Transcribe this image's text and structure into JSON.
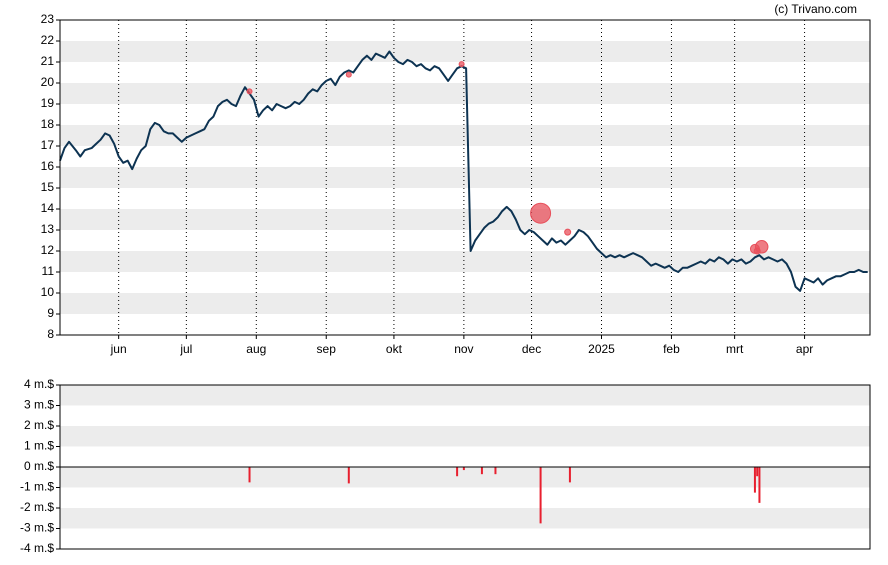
{
  "credit": "(c) Trivano.com",
  "colors": {
    "band": "#ececec",
    "price_line": "#0d3352",
    "marker": "#e8505b",
    "volume_bar": "#e8202f",
    "frame": "#000000",
    "vgrid": "#000000"
  },
  "chart_data": [
    {
      "type": "line",
      "title": "",
      "xlabel": "",
      "ylabel": "",
      "ylim": [
        8,
        23
      ],
      "yticks": [
        8,
        9,
        10,
        11,
        12,
        13,
        14,
        15,
        16,
        17,
        18,
        19,
        20,
        21,
        22,
        23
      ],
      "ytick_labels": [
        "8",
        "9",
        "10",
        "11",
        "12",
        "13",
        "14",
        "15",
        "16",
        "17",
        "18",
        "19",
        "20",
        "21",
        "22",
        "23"
      ],
      "xlim": [
        "2024-05-06",
        "2025-04-30"
      ],
      "xticks": [
        {
          "label": "jun",
          "date": "2024-06-01"
        },
        {
          "label": "jul",
          "date": "2024-07-01"
        },
        {
          "label": "aug",
          "date": "2024-08-01"
        },
        {
          "label": "sep",
          "date": "2024-09-01"
        },
        {
          "label": "okt",
          "date": "2024-10-01"
        },
        {
          "label": "nov",
          "date": "2024-11-01"
        },
        {
          "label": "dec",
          "date": "2024-12-01"
        },
        {
          "label": "2025",
          "date": "2025-01-01"
        },
        {
          "label": "feb",
          "date": "2025-02-01"
        },
        {
          "label": "mrt",
          "date": "2025-03-01"
        },
        {
          "label": "apr",
          "date": "2025-04-01"
        }
      ],
      "grid": "alternating horizontal bands, dotted vertical lines at month ticks",
      "series": [
        {
          "points": [
            [
              "2024-05-06",
              16.3
            ],
            [
              "2024-05-08",
              16.9
            ],
            [
              "2024-05-10",
              17.2
            ],
            [
              "2024-05-13",
              16.8
            ],
            [
              "2024-05-15",
              16.5
            ],
            [
              "2024-05-17",
              16.8
            ],
            [
              "2024-05-20",
              16.9
            ],
            [
              "2024-05-22",
              17.1
            ],
            [
              "2024-05-24",
              17.3
            ],
            [
              "2024-05-26",
              17.6
            ],
            [
              "2024-05-28",
              17.5
            ],
            [
              "2024-05-30",
              17.1
            ],
            [
              "2024-06-01",
              16.5
            ],
            [
              "2024-06-03",
              16.2
            ],
            [
              "2024-06-05",
              16.3
            ],
            [
              "2024-06-07",
              15.9
            ],
            [
              "2024-06-09",
              16.4
            ],
            [
              "2024-06-11",
              16.8
            ],
            [
              "2024-06-13",
              17.0
            ],
            [
              "2024-06-15",
              17.8
            ],
            [
              "2024-06-17",
              18.1
            ],
            [
              "2024-06-19",
              18.0
            ],
            [
              "2024-06-21",
              17.7
            ],
            [
              "2024-06-23",
              17.6
            ],
            [
              "2024-06-25",
              17.6
            ],
            [
              "2024-06-27",
              17.4
            ],
            [
              "2024-06-29",
              17.2
            ],
            [
              "2024-07-01",
              17.4
            ],
            [
              "2024-07-03",
              17.5
            ],
            [
              "2024-07-05",
              17.6
            ],
            [
              "2024-07-07",
              17.7
            ],
            [
              "2024-07-09",
              17.8
            ],
            [
              "2024-07-11",
              18.2
            ],
            [
              "2024-07-13",
              18.4
            ],
            [
              "2024-07-15",
              18.9
            ],
            [
              "2024-07-17",
              19.1
            ],
            [
              "2024-07-19",
              19.2
            ],
            [
              "2024-07-21",
              19.0
            ],
            [
              "2024-07-23",
              18.9
            ],
            [
              "2024-07-25",
              19.4
            ],
            [
              "2024-07-27",
              19.8
            ],
            [
              "2024-07-29",
              19.5
            ],
            [
              "2024-07-31",
              19.2
            ],
            [
              "2024-08-02",
              18.4
            ],
            [
              "2024-08-04",
              18.7
            ],
            [
              "2024-08-06",
              18.9
            ],
            [
              "2024-08-08",
              18.7
            ],
            [
              "2024-08-10",
              19.0
            ],
            [
              "2024-08-12",
              18.9
            ],
            [
              "2024-08-14",
              18.8
            ],
            [
              "2024-08-16",
              18.9
            ],
            [
              "2024-08-18",
              19.1
            ],
            [
              "2024-08-20",
              19.0
            ],
            [
              "2024-08-22",
              19.2
            ],
            [
              "2024-08-24",
              19.5
            ],
            [
              "2024-08-26",
              19.7
            ],
            [
              "2024-08-28",
              19.6
            ],
            [
              "2024-08-30",
              19.9
            ],
            [
              "2024-09-01",
              20.1
            ],
            [
              "2024-09-03",
              20.2
            ],
            [
              "2024-09-05",
              19.9
            ],
            [
              "2024-09-07",
              20.3
            ],
            [
              "2024-09-09",
              20.5
            ],
            [
              "2024-09-11",
              20.6
            ],
            [
              "2024-09-13",
              20.5
            ],
            [
              "2024-09-15",
              20.8
            ],
            [
              "2024-09-17",
              21.1
            ],
            [
              "2024-09-19",
              21.3
            ],
            [
              "2024-09-21",
              21.1
            ],
            [
              "2024-09-23",
              21.4
            ],
            [
              "2024-09-25",
              21.3
            ],
            [
              "2024-09-27",
              21.2
            ],
            [
              "2024-09-29",
              21.5
            ],
            [
              "2024-10-01",
              21.2
            ],
            [
              "2024-10-03",
              21.0
            ],
            [
              "2024-10-05",
              20.9
            ],
            [
              "2024-10-07",
              21.1
            ],
            [
              "2024-10-09",
              21.0
            ],
            [
              "2024-10-11",
              20.8
            ],
            [
              "2024-10-13",
              20.9
            ],
            [
              "2024-10-15",
              20.7
            ],
            [
              "2024-10-17",
              20.6
            ],
            [
              "2024-10-19",
              20.8
            ],
            [
              "2024-10-21",
              20.7
            ],
            [
              "2024-10-23",
              20.4
            ],
            [
              "2024-10-25",
              20.1
            ],
            [
              "2024-10-27",
              20.4
            ],
            [
              "2024-10-29",
              20.7
            ],
            [
              "2024-10-31",
              20.8
            ],
            [
              "2024-11-02",
              20.7
            ],
            [
              "2024-11-04",
              12.0
            ],
            [
              "2024-11-06",
              12.5
            ],
            [
              "2024-11-08",
              12.8
            ],
            [
              "2024-11-10",
              13.1
            ],
            [
              "2024-11-12",
              13.3
            ],
            [
              "2024-11-14",
              13.4
            ],
            [
              "2024-11-16",
              13.6
            ],
            [
              "2024-11-18",
              13.9
            ],
            [
              "2024-11-20",
              14.1
            ],
            [
              "2024-11-22",
              13.9
            ],
            [
              "2024-11-24",
              13.5
            ],
            [
              "2024-11-26",
              13.0
            ],
            [
              "2024-11-28",
              12.8
            ],
            [
              "2024-11-30",
              13.0
            ],
            [
              "2024-12-02",
              12.9
            ],
            [
              "2024-12-04",
              12.7
            ],
            [
              "2024-12-06",
              12.5
            ],
            [
              "2024-12-08",
              12.3
            ],
            [
              "2024-12-10",
              12.6
            ],
            [
              "2024-12-12",
              12.4
            ],
            [
              "2024-12-14",
              12.5
            ],
            [
              "2024-12-16",
              12.3
            ],
            [
              "2024-12-18",
              12.5
            ],
            [
              "2024-12-20",
              12.7
            ],
            [
              "2024-12-22",
              13.0
            ],
            [
              "2024-12-24",
              12.9
            ],
            [
              "2024-12-26",
              12.7
            ],
            [
              "2024-12-28",
              12.4
            ],
            [
              "2024-12-30",
              12.1
            ],
            [
              "2025-01-01",
              11.9
            ],
            [
              "2025-01-03",
              11.7
            ],
            [
              "2025-01-05",
              11.8
            ],
            [
              "2025-01-07",
              11.7
            ],
            [
              "2025-01-09",
              11.8
            ],
            [
              "2025-01-11",
              11.7
            ],
            [
              "2025-01-13",
              11.8
            ],
            [
              "2025-01-15",
              11.9
            ],
            [
              "2025-01-17",
              11.8
            ],
            [
              "2025-01-19",
              11.7
            ],
            [
              "2025-01-21",
              11.5
            ],
            [
              "2025-01-23",
              11.3
            ],
            [
              "2025-01-25",
              11.4
            ],
            [
              "2025-01-27",
              11.3
            ],
            [
              "2025-01-29",
              11.2
            ],
            [
              "2025-01-31",
              11.3
            ],
            [
              "2025-02-02",
              11.1
            ],
            [
              "2025-02-04",
              11.0
            ],
            [
              "2025-02-06",
              11.2
            ],
            [
              "2025-02-08",
              11.2
            ],
            [
              "2025-02-10",
              11.3
            ],
            [
              "2025-02-12",
              11.4
            ],
            [
              "2025-02-14",
              11.5
            ],
            [
              "2025-02-16",
              11.4
            ],
            [
              "2025-02-18",
              11.6
            ],
            [
              "2025-02-20",
              11.5
            ],
            [
              "2025-02-22",
              11.7
            ],
            [
              "2025-02-24",
              11.6
            ],
            [
              "2025-02-26",
              11.4
            ],
            [
              "2025-02-28",
              11.6
            ],
            [
              "2025-03-02",
              11.5
            ],
            [
              "2025-03-04",
              11.6
            ],
            [
              "2025-03-06",
              11.4
            ],
            [
              "2025-03-08",
              11.5
            ],
            [
              "2025-03-10",
              11.7
            ],
            [
              "2025-03-12",
              11.8
            ],
            [
              "2025-03-14",
              11.6
            ],
            [
              "2025-03-16",
              11.7
            ],
            [
              "2025-03-18",
              11.6
            ],
            [
              "2025-03-20",
              11.5
            ],
            [
              "2025-03-22",
              11.6
            ],
            [
              "2025-03-24",
              11.4
            ],
            [
              "2025-03-26",
              11.0
            ],
            [
              "2025-03-28",
              10.3
            ],
            [
              "2025-03-30",
              10.1
            ],
            [
              "2025-04-01",
              10.7
            ],
            [
              "2025-04-03",
              10.6
            ],
            [
              "2025-04-05",
              10.5
            ],
            [
              "2025-04-07",
              10.7
            ],
            [
              "2025-04-09",
              10.4
            ],
            [
              "2025-04-11",
              10.6
            ],
            [
              "2025-04-13",
              10.7
            ],
            [
              "2025-04-15",
              10.8
            ],
            [
              "2025-04-17",
              10.8
            ],
            [
              "2025-04-19",
              10.9
            ],
            [
              "2025-04-21",
              11.0
            ],
            [
              "2025-04-23",
              11.0
            ],
            [
              "2025-04-25",
              11.1
            ],
            [
              "2025-04-27",
              11.0
            ],
            [
              "2025-04-29",
              11.0
            ]
          ]
        }
      ],
      "markers": [
        {
          "date": "2024-07-29",
          "value": 19.6,
          "size": 1
        },
        {
          "date": "2024-09-11",
          "value": 20.4,
          "size": 1
        },
        {
          "date": "2024-10-31",
          "value": 20.9,
          "size": 1
        },
        {
          "date": "2024-12-05",
          "value": 13.8,
          "size": 4
        },
        {
          "date": "2024-12-17",
          "value": 12.9,
          "size": 1.2
        },
        {
          "date": "2025-03-10",
          "value": 12.1,
          "size": 1.8
        },
        {
          "date": "2025-03-11",
          "value": 12.0,
          "size": 1.2
        },
        {
          "date": "2025-03-13",
          "value": 12.2,
          "size": 2.5
        }
      ]
    },
    {
      "type": "bar",
      "title": "",
      "xlabel": "",
      "ylabel": "",
      "ylim": [
        -4,
        4
      ],
      "yticks": [
        -4,
        -3,
        -2,
        -1,
        0,
        1,
        2,
        3,
        4
      ],
      "ytick_labels": [
        "-4 m.$",
        "-3 m.$",
        "-2 m.$",
        "-1 m.$",
        "0 m.$",
        "1 m.$",
        "2 m.$",
        "3 m.$",
        "4 m.$"
      ],
      "grid": "alternating horizontal bands, zero line",
      "bars": [
        {
          "date": "2024-07-29",
          "value": -0.75
        },
        {
          "date": "2024-09-11",
          "value": -0.8
        },
        {
          "date": "2024-10-29",
          "value": -0.45
        },
        {
          "date": "2024-11-01",
          "value": -0.15
        },
        {
          "date": "2024-11-09",
          "value": -0.35
        },
        {
          "date": "2024-11-15",
          "value": -0.35
        },
        {
          "date": "2024-12-05",
          "value": -2.75
        },
        {
          "date": "2024-12-18",
          "value": -0.75
        },
        {
          "date": "2025-03-10",
          "value": -1.25
        },
        {
          "date": "2025-03-11",
          "value": -0.45
        },
        {
          "date": "2025-03-12",
          "value": -1.75
        }
      ]
    }
  ]
}
